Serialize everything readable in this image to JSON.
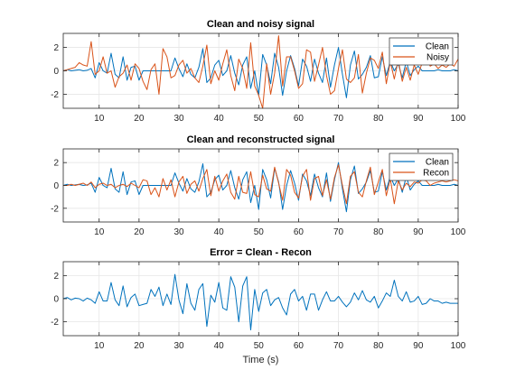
{
  "colors": {
    "clean": "#0072BD",
    "noisy": "#D95319",
    "recon": "#D95319",
    "error": "#0072BD",
    "grid": "#e6e6e6",
    "axis": "#262626"
  },
  "chart_data": [
    {
      "type": "line",
      "title": "Clean and noisy signal",
      "xlabel": "",
      "ylabel": "",
      "xlim": [
        1,
        100
      ],
      "ylim": [
        -3.2,
        3.2
      ],
      "xticks": [
        10,
        20,
        30,
        40,
        50,
        60,
        70,
        80,
        90,
        100
      ],
      "yticks": [
        -2,
        0,
        2
      ],
      "grid": true,
      "legend": "top-right",
      "x_start": 1,
      "series": [
        {
          "name": "Clean",
          "color": "#0072BD",
          "values": [
            0.0,
            0.1,
            0.0,
            0.05,
            0.1,
            0.0,
            0.05,
            0.2,
            -0.6,
            0.7,
            0.0,
            -0.2,
            1.5,
            -0.3,
            -0.6,
            1.2,
            -0.8,
            0.3,
            0.4,
            -0.8,
            0.0,
            0.0,
            0.0,
            0.0,
            0.0,
            0.0,
            0.0,
            0.0,
            1.1,
            0.2,
            -0.5,
            0.6,
            -0.3,
            -0.6,
            0.3,
            1.9,
            -1.0,
            -0.6,
            0.5,
            0.9,
            -0.4,
            0.0,
            1.3,
            -0.2,
            -1.2,
            0.5,
            1.2,
            -1.5,
            0.0,
            -2.1,
            1.4,
            0.5,
            -1.1,
            1.5,
            0.3,
            -2.1,
            0.0,
            1.3,
            0.2,
            -1.3,
            1.0,
            0.4,
            -0.9,
            1.0,
            -0.2,
            -1.0,
            1.1,
            -1.4,
            0.5,
            2.0,
            -0.3,
            -2.3,
            0.5,
            1.7,
            -0.7,
            -0.3,
            0.3,
            1.3,
            -0.6,
            -0.5,
            1.2,
            -0.4,
            0.8,
            0.0,
            0.6,
            -0.6,
            0.8,
            -0.4,
            0.1,
            0.4,
            0.0,
            0.0,
            0.0,
            0.0,
            0.1,
            0.0,
            0.0,
            0.0,
            0.1,
            0.0
          ]
        },
        {
          "name": "Noisy",
          "color": "#D95319",
          "values": [
            0.0,
            0.1,
            0.2,
            0.3,
            0.7,
            0.5,
            0.4,
            2.5,
            -0.3,
            0.0,
            1.2,
            -0.2,
            0.0,
            -1.4,
            -0.5,
            -0.2,
            0.5,
            -0.8,
            0.6,
            0.2,
            -0.9,
            -1.6,
            0.1,
            0.6,
            -2.0,
            1.9,
            1.2,
            -0.6,
            -0.4,
            0.5,
            0.9,
            -0.2,
            0.2,
            -0.6,
            -1.0,
            0.4,
            2.2,
            -1.1,
            0.0,
            -0.8,
            0.6,
            1.8,
            -0.4,
            -1.7,
            1.0,
            0.2,
            -1.5,
            2.4,
            -1.3,
            -2.1,
            -3.2,
            0.6,
            -2.0,
            -0.2,
            3.0,
            -1.3,
            1.2,
            1.2,
            0.0,
            -1.5,
            -1.1,
            1.8,
            1.6,
            -0.9,
            0.5,
            2.0,
            -0.4,
            -2.0,
            -1.7,
            0.2,
            1.8,
            -0.7,
            -1.0,
            -0.6,
            1.4,
            -1.9,
            -0.2,
            1.1,
            0.9,
            0.2,
            1.6,
            -1.1,
            0.8,
            -0.7,
            0.9,
            -0.9,
            0.3,
            -0.8,
            0.5,
            -0.3,
            0.7,
            1.3,
            0.4,
            0.6,
            0.2,
            0.5,
            0.3,
            0.6,
            0.4,
            1.0
          ]
        }
      ]
    },
    {
      "type": "line",
      "title": "Clean and reconstructed signal",
      "xlabel": "",
      "ylabel": "",
      "xlim": [
        1,
        100
      ],
      "ylim": [
        -3.2,
        3.2
      ],
      "xticks": [
        10,
        20,
        30,
        40,
        50,
        60,
        70,
        80,
        90,
        100
      ],
      "yticks": [
        -2,
        0,
        2
      ],
      "grid": true,
      "legend": "top-right",
      "x_start": 1,
      "series": [
        {
          "name": "Clean",
          "color": "#0072BD",
          "values": [
            0.0,
            0.1,
            0.0,
            0.05,
            0.1,
            0.0,
            0.05,
            0.2,
            -0.6,
            0.7,
            0.0,
            -0.2,
            1.5,
            -0.3,
            -0.6,
            1.2,
            -0.8,
            0.3,
            0.4,
            -0.8,
            0.0,
            0.0,
            0.0,
            0.0,
            0.0,
            0.0,
            0.0,
            0.0,
            1.1,
            0.2,
            -0.5,
            0.6,
            -0.3,
            -0.6,
            0.3,
            1.9,
            -1.0,
            -0.6,
            0.5,
            0.9,
            -0.4,
            0.0,
            1.3,
            -0.2,
            -1.2,
            0.5,
            1.2,
            -1.5,
            0.0,
            -2.1,
            1.4,
            0.5,
            -1.1,
            1.5,
            0.3,
            -2.1,
            0.0,
            1.3,
            0.2,
            -1.3,
            1.0,
            0.4,
            -0.9,
            1.0,
            -0.2,
            -1.0,
            1.1,
            -1.4,
            0.5,
            2.0,
            -0.3,
            -2.3,
            0.5,
            1.7,
            -0.7,
            -0.3,
            0.3,
            1.3,
            -0.6,
            -0.5,
            1.2,
            -0.4,
            0.8,
            0.0,
            0.6,
            -0.6,
            0.8,
            -0.4,
            0.1,
            0.4,
            0.0,
            0.0,
            0.0,
            0.0,
            0.1,
            0.0,
            0.0,
            0.0,
            0.1,
            0.0
          ]
        },
        {
          "name": "Recon",
          "color": "#D95319",
          "values": [
            0.0,
            0.0,
            0.1,
            0.0,
            0.1,
            0.2,
            0.0,
            0.3,
            -0.2,
            0.1,
            0.2,
            0.0,
            0.1,
            -0.2,
            0.0,
            0.1,
            -0.1,
            0.2,
            0.0,
            -0.2,
            0.5,
            0.4,
            -0.8,
            -0.2,
            -1.0,
            0.6,
            -0.4,
            0.5,
            -1.0,
            0.3,
            0.8,
            -0.7,
            0.1,
            0.4,
            -0.5,
            0.6,
            1.4,
            -0.9,
            0.8,
            -0.5,
            0.4,
            1.0,
            -0.6,
            -1.2,
            0.8,
            -0.6,
            -0.7,
            1.2,
            -0.8,
            -1.0,
            0.9,
            -0.3,
            -0.5,
            1.6,
            0.2,
            -1.3,
            1.4,
            0.9,
            -0.6,
            -1.1,
            0.8,
            1.4,
            -1.3,
            0.6,
            0.8,
            -0.9,
            0.5,
            -1.2,
            0.7,
            1.8,
            0.0,
            -1.6,
            0.8,
            1.2,
            -0.6,
            -1.0,
            0.4,
            1.6,
            -0.8,
            0.3,
            1.4,
            -0.9,
            0.6,
            -1.6,
            0.4,
            -0.4,
            0.2,
            -0.1,
            0.3,
            0.2,
            0.5,
            0.4,
            0.0,
            0.2,
            0.3,
            0.4,
            0.3,
            0.4,
            0.5,
            0.4
          ]
        }
      ]
    },
    {
      "type": "line",
      "title": "Error = Clean - Recon",
      "xlabel": "Time (s)",
      "ylabel": "",
      "xlim": [
        1,
        100
      ],
      "ylim": [
        -3.2,
        3.2
      ],
      "xticks": [
        10,
        20,
        30,
        40,
        50,
        60,
        70,
        80,
        90,
        100
      ],
      "yticks": [
        -2,
        0,
        2
      ],
      "grid": true,
      "x_start": 1,
      "series": [
        {
          "name": "",
          "color": "#0072BD",
          "values": [
            0.0,
            0.1,
            -0.1,
            0.05,
            0.0,
            -0.2,
            0.05,
            -0.1,
            -0.4,
            0.6,
            -0.2,
            -0.2,
            1.4,
            -0.1,
            -0.6,
            1.1,
            -0.7,
            0.1,
            0.4,
            -0.6,
            -0.5,
            -0.4,
            0.8,
            0.2,
            1.0,
            -0.6,
            0.4,
            -0.5,
            2.1,
            -0.1,
            -1.3,
            1.3,
            -0.4,
            -1.0,
            0.8,
            1.3,
            -2.4,
            0.3,
            -0.3,
            1.4,
            -0.8,
            -1.0,
            1.9,
            1.0,
            -2.0,
            1.1,
            1.9,
            -2.7,
            0.8,
            -1.1,
            0.5,
            0.8,
            -0.6,
            -0.1,
            0.1,
            -0.8,
            -1.4,
            0.4,
            0.8,
            -0.2,
            0.2,
            -1.0,
            0.4,
            0.4,
            -1.0,
            -0.1,
            0.6,
            -0.2,
            -0.2,
            0.2,
            -0.3,
            -0.7,
            -0.3,
            0.5,
            -0.1,
            0.7,
            -0.1,
            -0.3,
            0.2,
            -0.8,
            -0.2,
            0.5,
            0.2,
            1.6,
            0.2,
            -0.2,
            0.6,
            -0.3,
            -0.2,
            0.2,
            -0.5,
            -0.4,
            0.0,
            -0.2,
            -0.2,
            -0.4,
            -0.3,
            -0.4,
            -0.4,
            -0.4
          ]
        }
      ]
    }
  ]
}
